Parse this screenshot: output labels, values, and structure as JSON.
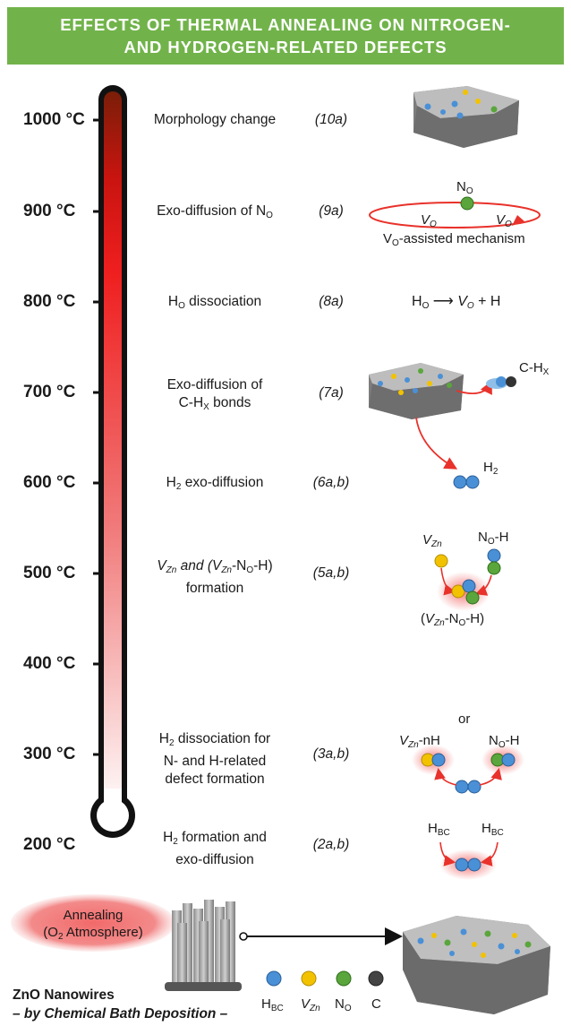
{
  "header": {
    "line1": "EFFECTS OF THERMAL ANNEALING ON NITROGEN-",
    "line2": "AND HYDROGEN-RELATED DEFECTS"
  },
  "temperatures": [
    "1000 °C",
    "900 °C",
    "800 °C",
    "700 °C",
    "600 °C",
    "500 °C",
    "400 °C",
    "300 °C",
    "200 °C"
  ],
  "steps": {
    "s10": {
      "text": "Morphology change",
      "eq": "(10a)"
    },
    "s9": {
      "text_pre": "Exo-diffusion of N",
      "text_sub": "O",
      "eq": "(9a)"
    },
    "s8": {
      "text_pre": "H",
      "text_sub": "O",
      "text_post": " dissociation",
      "eq": "(8a)"
    },
    "s7": {
      "line1": "Exo-diffusion of",
      "line2_pre": "C-H",
      "line2_sub": "X",
      "line2_post": " bonds",
      "eq": "(7a)"
    },
    "s6": {
      "text_pre": "H",
      "text_sub": "2",
      "text_post": " exo-diffusion",
      "eq": "(6a,b)"
    },
    "s5": {
      "l1_a": "V",
      "l1_a_sub": "Zn",
      "l1_b": " and (",
      "l1_c": "V",
      "l1_c_sub": "Zn",
      "l1_d": "-N",
      "l1_d_sub": "O",
      "l1_e": "-H)",
      "line2": "formation",
      "eq": "(5a,b)"
    },
    "s3": {
      "l1_pre": "H",
      "l1_sub": "2",
      "l1_post": " dissociation for",
      "line2": "N- and H-related",
      "line3": "defect formation",
      "eq": "(3a,b)"
    },
    "s2": {
      "l1_pre": "H",
      "l1_sub": "2",
      "l1_post": " formation and",
      "line2": "exo-diffusion",
      "eq": "(2a,b)"
    }
  },
  "annotations": {
    "no_top": "N",
    "no_top_sub": "O",
    "vo_left": "V",
    "vo_left_sub": "O",
    "vo_right": "V",
    "vo_right_sub": "O",
    "vo_mech_pre": "V",
    "vo_mech_sub": "O",
    "vo_mech_post": "-assisted mechanism",
    "ho_eq_h": "H",
    "ho_eq_sub": "O",
    "ho_eq_arrow": "⟶",
    "ho_eq_v": "V",
    "ho_eq_vsub": "O",
    "ho_eq_tail": " +  H",
    "chx_pre": "C-H",
    "chx_sub": "X",
    "h2_pre": "H",
    "h2_sub": "2",
    "vzn_pre": "V",
    "vzn_sub": "Zn",
    "noh_pre": "N",
    "noh_sub": "O",
    "noh_post": "-H",
    "complex_a": "(",
    "complex_b": "V",
    "complex_b_sub": "Zn",
    "complex_c": "-N",
    "complex_c_sub": "O",
    "complex_d": "-H)",
    "or": "or",
    "vznnh_a": "V",
    "vznnh_sub": "Zn",
    "vznnh_b": "-nH",
    "noh2_pre": "N",
    "noh2_sub": "O",
    "noh2_post": "-H",
    "hbc_l": "H",
    "hbc_l_sub": "BC",
    "hbc_r": "H",
    "hbc_r_sub": "BC"
  },
  "annealing": {
    "line1": "Annealing",
    "line2_pre": "(O",
    "line2_sub": "2",
    "line2_post": " Atmosphere)"
  },
  "legend": {
    "hbc": "H",
    "hbc_sub": "BC",
    "vzn": "V",
    "vzn_sub": "Zn",
    "no": "N",
    "no_sub": "O",
    "c": "C",
    "colors": {
      "H": "#4a90d6",
      "V_Zn": "#f2c200",
      "N": "#5aa63c",
      "C": "#444444"
    }
  },
  "bottom": {
    "line1": "ZnO Nanowires",
    "line2": "– by Chemical Bath Deposition –"
  },
  "colors": {
    "header": "#71b34a",
    "thermo_top": "#7a1e08",
    "thermo_hot": "#e81d1d",
    "arrow": "#e8322b"
  }
}
